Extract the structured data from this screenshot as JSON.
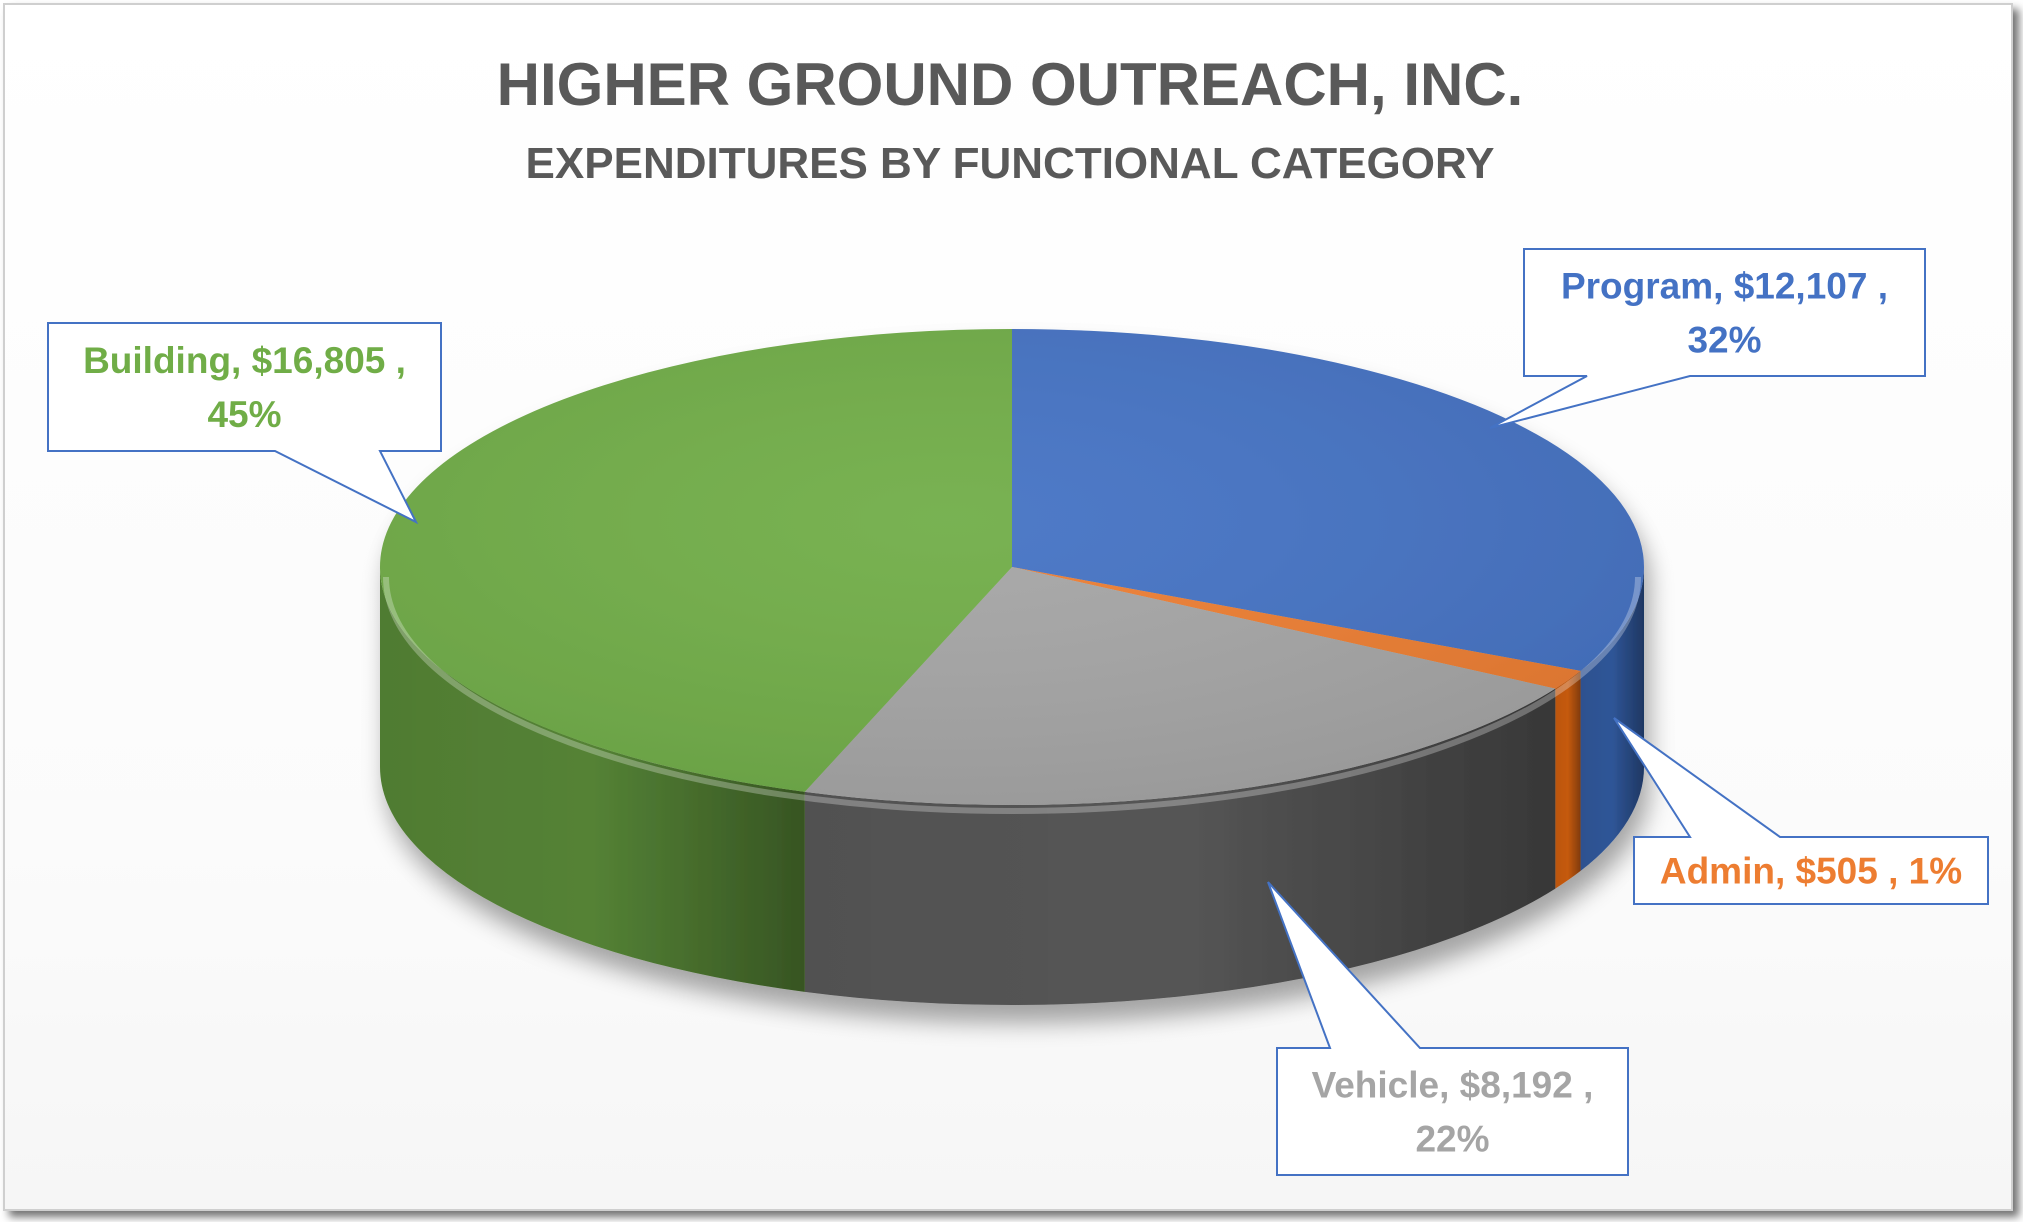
{
  "chart_data": {
    "type": "pie",
    "style": "3d",
    "title": "HIGHER GROUND OUTREACH, INC.",
    "subtitle": "EXPENDITURES BY FUNCTIONAL CATEGORY",
    "slices": [
      {
        "name": "Program",
        "value": 12107,
        "value_label": "$12,107",
        "percent": 32,
        "percent_label": "32%",
        "color": "#4472C4",
        "side_color": "#2F5597"
      },
      {
        "name": "Admin",
        "value": 505,
        "value_label": "$505",
        "percent": 1,
        "percent_label": "1%",
        "color": "#ED7D31",
        "side_color": "#C55A11"
      },
      {
        "name": "Vehicle",
        "value": 8192,
        "value_label": "$8,192",
        "percent": 22,
        "percent_label": "22%",
        "color": "#A5A5A5",
        "side_color": "#555555"
      },
      {
        "name": "Building",
        "value": 16805,
        "value_label": "$16,805",
        "percent": 45,
        "percent_label": "45%",
        "color": "#70AD47",
        "side_color": "#548235"
      }
    ],
    "data_labels": {
      "Program": [
        "Program,  $12,107 ,",
        "32%"
      ],
      "Admin": [
        "Admin,  $505 , 1%"
      ],
      "Vehicle": [
        "Vehicle,  $8,192 ,",
        "22%"
      ],
      "Building": [
        "Building,  $16,805 ,",
        "45%"
      ]
    },
    "label_colors": {
      "Program": "#4472C4",
      "Admin": "#ED7D31",
      "Vehicle": "#A5A5A5",
      "Building": "#70AD47"
    },
    "legend": "none"
  }
}
